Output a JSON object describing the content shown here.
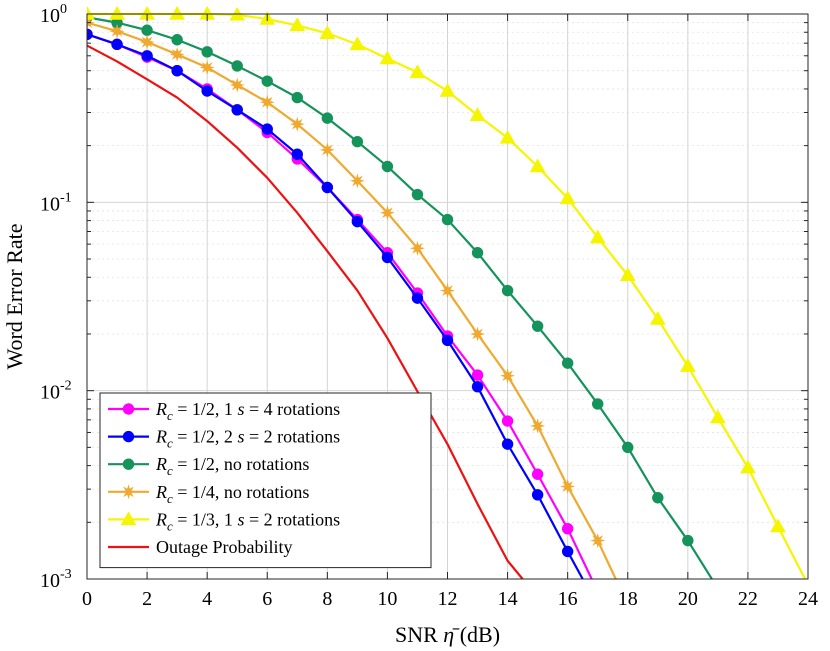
{
  "chart_data": {
    "type": "line",
    "yscale": "log",
    "xlabel": "SNR η̄ (dB)",
    "xlabel_parts": {
      "prefix": "SNR",
      "symbol": "η",
      "units": "(dB)"
    },
    "ylabel": "Word Error Rate",
    "xlim": [
      0,
      24
    ],
    "ylim": [
      0.001,
      1
    ],
    "x_ticks": [
      "0",
      "2",
      "4",
      "6",
      "8",
      "10",
      "12",
      "14",
      "16",
      "18",
      "20",
      "22",
      "24"
    ],
    "y_ticks": [
      {
        "base": "10",
        "exp": "0",
        "value": 1
      },
      {
        "base": "10",
        "exp": "-1",
        "value": 0.1
      },
      {
        "base": "10",
        "exp": "-2",
        "value": 0.01
      },
      {
        "base": "10",
        "exp": "-3",
        "value": 0.001
      }
    ],
    "grid": true,
    "legend_position": "bottom-left",
    "series": [
      {
        "name": "Rc = 1/2, 1 s = 4 rotations",
        "legend": {
          "lhs": "R",
          "sub": "c",
          "rhs": " = 1/2, 1 ",
          "var": "s",
          "tail": " = 4 rotations"
        },
        "color": "#ff00ff",
        "marker": "circle",
        "x": [
          0,
          1,
          2,
          3,
          4,
          5,
          6,
          7,
          8,
          9,
          10,
          11,
          12,
          13,
          14,
          15,
          16,
          16.8
        ],
        "y": [
          0.78,
          0.69,
          0.59,
          0.5,
          0.4,
          0.31,
          0.235,
          0.17,
          0.12,
          0.081,
          0.054,
          0.033,
          0.0195,
          0.0121,
          0.0069,
          0.0036,
          0.00185,
          0.001
        ]
      },
      {
        "name": "Rc = 1/2, 2 s = 2 rotations",
        "legend": {
          "lhs": "R",
          "sub": "c",
          "rhs": " = 1/2, 2 ",
          "var": "s",
          "tail": " = 2 rotations"
        },
        "color": "#0000ff",
        "marker": "circle",
        "x": [
          0,
          1,
          2,
          3,
          4,
          5,
          6,
          7,
          8,
          9,
          10,
          11,
          12,
          13,
          14,
          15,
          16,
          16.5
        ],
        "y": [
          0.78,
          0.69,
          0.6,
          0.5,
          0.39,
          0.31,
          0.245,
          0.18,
          0.12,
          0.079,
          0.051,
          0.031,
          0.0185,
          0.0105,
          0.0052,
          0.0028,
          0.0014,
          0.001
        ]
      },
      {
        "name": "Rc = 1/2, no rotations",
        "legend": {
          "lhs": "R",
          "sub": "c",
          "rhs": " = 1/2, no rotations",
          "var": "",
          "tail": ""
        },
        "color": "#14935a",
        "marker": "circle",
        "x": [
          0,
          1,
          2,
          3,
          4,
          5,
          6,
          7,
          8,
          9,
          10,
          11,
          12,
          13,
          14,
          15,
          16,
          17,
          18,
          19,
          20,
          20.8
        ],
        "y": [
          0.96,
          0.9,
          0.82,
          0.73,
          0.63,
          0.53,
          0.44,
          0.36,
          0.28,
          0.21,
          0.155,
          0.11,
          0.081,
          0.054,
          0.034,
          0.022,
          0.014,
          0.0085,
          0.005,
          0.0027,
          0.0016,
          0.001
        ]
      },
      {
        "name": "Rc = 1/4, no rotations",
        "legend": {
          "lhs": "R",
          "sub": "c",
          "rhs": " = 1/4, no rotations",
          "var": "",
          "tail": ""
        },
        "color": "#f0a92f",
        "marker": "star",
        "x": [
          0,
          1,
          2,
          3,
          4,
          5,
          6,
          7,
          8,
          9,
          10,
          11,
          12,
          13,
          14,
          15,
          16,
          17,
          17.6
        ],
        "y": [
          0.9,
          0.81,
          0.71,
          0.61,
          0.52,
          0.42,
          0.34,
          0.26,
          0.19,
          0.13,
          0.088,
          0.057,
          0.034,
          0.02,
          0.012,
          0.0065,
          0.0031,
          0.0016,
          0.001
        ]
      },
      {
        "name": "Rc = 1/3, 1 s = 2 rotations",
        "legend": {
          "lhs": "R",
          "sub": "c",
          "rhs": " = 1/3, 1 ",
          "var": "s",
          "tail": " = 2 rotations"
        },
        "color": "#f5f500",
        "marker": "triangle",
        "x": [
          0,
          1,
          2,
          3,
          4,
          5,
          6,
          7,
          8,
          9,
          10,
          11,
          12,
          13,
          14,
          15,
          16,
          17,
          18,
          19,
          20,
          21,
          22,
          23,
          23.9
        ],
        "y": [
          1.0,
          1.0,
          1.0,
          1.0,
          1.0,
          0.99,
          0.94,
          0.87,
          0.79,
          0.69,
          0.58,
          0.49,
          0.39,
          0.29,
          0.22,
          0.155,
          0.105,
          0.065,
          0.041,
          0.024,
          0.0135,
          0.0072,
          0.0039,
          0.0019,
          0.001
        ]
      },
      {
        "name": "Outage Probability",
        "legend": {
          "lhs": "Outage Probability",
          "sub": "",
          "rhs": "",
          "var": "",
          "tail": ""
        },
        "color": "#ee1111",
        "marker": "none",
        "x": [
          0,
          1,
          2,
          3,
          4,
          5,
          6,
          7,
          8,
          9,
          10,
          11,
          12,
          13,
          14,
          14.5
        ],
        "y": [
          0.68,
          0.56,
          0.45,
          0.36,
          0.27,
          0.195,
          0.135,
          0.088,
          0.055,
          0.034,
          0.019,
          0.0099,
          0.0052,
          0.0025,
          0.00125,
          0.001
        ]
      }
    ]
  }
}
